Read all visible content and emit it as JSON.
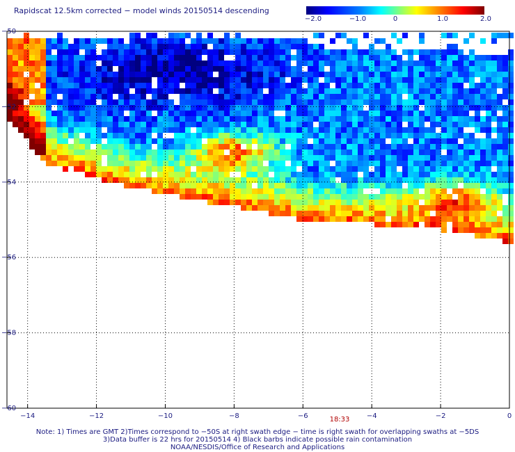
{
  "title": "Rapidscat 12.5km corrected − model winds 20150514 descending",
  "colorbar": {
    "labels": [
      "−2.0",
      "−1.0",
      "0",
      "1.0",
      "2.0"
    ],
    "min": -2.0,
    "max": 2.0
  },
  "time_label": "18:33",
  "notes": [
    "Note: 1) Times are GMT 2)Times correspond to −50S at right swath edge − time is right swath for overlapping swaths at −5DS",
    "3)Data buffer is 22 hrs for 20150514 4) Black barbs indicate possible rain contamination",
    "NOAA/NESDIS/Office of Research and Applications"
  ],
  "chart_data": {
    "type": "heatmap",
    "x_ticks": [
      "−14",
      "−12",
      "−10",
      "−8",
      "−6",
      "−4",
      "−2",
      "0"
    ],
    "y_ticks": [
      "−50",
      "−52",
      "−54",
      "−56",
      "−58",
      "−60"
    ],
    "xlim": [
      -14.6,
      0
    ],
    "ylim": [
      -60,
      -50
    ],
    "grid": true,
    "value_range": [
      -2.0,
      2.0
    ]
  }
}
